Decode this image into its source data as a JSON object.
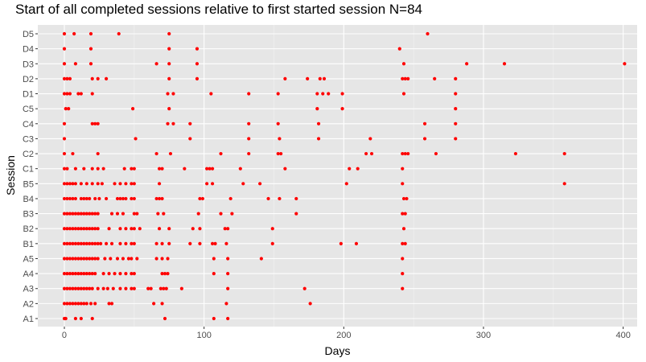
{
  "chart_data": {
    "type": "scatter",
    "title": "Start of all completed sessions relative to first started session N=84",
    "xlabel": "Days",
    "ylabel": "Session",
    "xlim": [
      -19,
      410
    ],
    "x_ticks": [
      0,
      100,
      200,
      300,
      400
    ],
    "categories": [
      "A1",
      "A2",
      "A3",
      "A4",
      "A5",
      "B1",
      "B2",
      "B3",
      "B4",
      "B5",
      "C1",
      "C2",
      "C3",
      "C4",
      "C5",
      "D1",
      "D2",
      "D3",
      "D4",
      "D5"
    ],
    "grid": true,
    "point_color": "#ff0000",
    "panel_background": "#e6e6e6",
    "series": [
      {
        "category": "A1",
        "x": [
          0,
          1,
          8,
          12,
          20,
          72,
          107,
          117
        ]
      },
      {
        "category": "A2",
        "x": [
          0,
          2,
          4,
          6,
          8,
          10,
          12,
          14,
          16,
          19,
          22,
          32,
          34,
          64,
          70,
          116,
          176
        ]
      },
      {
        "category": "A3",
        "x": [
          0,
          2,
          4,
          6,
          8,
          10,
          12,
          14,
          16,
          18,
          20,
          24,
          28,
          31,
          35,
          40,
          44,
          48,
          50,
          60,
          62,
          69,
          71,
          73,
          84,
          117,
          172,
          242
        ]
      },
      {
        "category": "A4",
        "x": [
          0,
          2,
          4,
          6,
          8,
          10,
          12,
          14,
          16,
          18,
          20,
          22,
          28,
          32,
          36,
          40,
          44,
          48,
          50,
          70,
          72,
          74,
          107,
          117,
          242
        ]
      },
      {
        "category": "A5",
        "x": [
          0,
          2,
          4,
          6,
          8,
          10,
          12,
          14,
          16,
          18,
          20,
          22,
          24,
          29,
          33,
          38,
          42,
          46,
          48,
          52,
          66,
          70,
          74,
          107,
          117,
          141,
          242
        ]
      },
      {
        "category": "B1",
        "x": [
          0,
          2,
          4,
          6,
          8,
          10,
          12,
          14,
          16,
          18,
          20,
          22,
          24,
          26,
          30,
          34,
          40,
          44,
          48,
          50,
          66,
          70,
          75,
          90,
          97,
          106,
          108,
          116,
          149,
          198,
          209,
          242,
          244
        ]
      },
      {
        "category": "B2",
        "x": [
          0,
          2,
          4,
          6,
          8,
          10,
          12,
          14,
          16,
          18,
          20,
          22,
          24,
          32,
          40,
          44,
          48,
          50,
          54,
          68,
          75,
          92,
          97,
          115,
          117,
          149,
          243
        ]
      },
      {
        "category": "B3",
        "x": [
          0,
          2,
          4,
          6,
          8,
          10,
          12,
          14,
          16,
          18,
          20,
          22,
          24,
          34,
          38,
          42,
          50,
          52,
          67,
          71,
          96,
          112,
          120,
          166,
          242,
          244
        ]
      },
      {
        "category": "B4",
        "x": [
          0,
          2,
          4,
          6,
          8,
          12,
          14,
          16,
          18,
          22,
          25,
          30,
          38,
          40,
          42,
          44,
          48,
          50,
          66,
          68,
          70,
          97,
          99,
          119,
          146,
          154,
          166,
          243,
          245
        ]
      },
      {
        "category": "B5",
        "x": [
          0,
          2,
          4,
          6,
          8,
          12,
          16,
          20,
          24,
          27,
          36,
          40,
          44,
          48,
          50,
          68,
          102,
          106,
          128,
          140,
          202,
          242,
          358
        ]
      },
      {
        "category": "C1",
        "x": [
          0,
          2,
          8,
          14,
          20,
          24,
          28,
          43,
          48,
          50,
          68,
          70,
          86,
          102,
          104,
          106,
          126,
          158,
          204,
          210,
          242
        ]
      },
      {
        "category": "C2",
        "x": [
          0,
          6,
          24,
          66,
          76,
          112,
          132,
          153,
          155,
          216,
          220,
          242,
          244,
          246,
          266,
          323,
          358
        ]
      },
      {
        "category": "C3",
        "x": [
          0,
          51,
          90,
          132,
          154,
          182,
          219,
          258,
          280
        ]
      },
      {
        "category": "C4",
        "x": [
          0,
          20,
          22,
          24,
          74,
          78,
          90,
          132,
          153,
          182,
          258,
          280
        ]
      },
      {
        "category": "C5",
        "x": [
          1,
          3,
          49,
          75,
          181,
          199,
          280
        ]
      },
      {
        "category": "D1",
        "x": [
          0,
          2,
          4,
          10,
          12,
          20,
          74,
          78,
          105,
          132,
          153,
          181,
          185,
          189,
          199,
          243,
          280
        ]
      },
      {
        "category": "D2",
        "x": [
          0,
          2,
          4,
          20,
          24,
          30,
          75,
          95,
          158,
          174,
          183,
          186,
          242,
          244,
          246,
          265,
          280
        ]
      },
      {
        "category": "D3",
        "x": [
          0,
          8,
          19,
          66,
          75,
          95,
          243,
          288,
          315,
          401
        ]
      },
      {
        "category": "D4",
        "x": [
          0,
          19,
          75,
          95,
          240
        ]
      },
      {
        "category": "D5",
        "x": [
          0,
          7,
          19,
          39,
          75,
          260
        ]
      }
    ]
  }
}
